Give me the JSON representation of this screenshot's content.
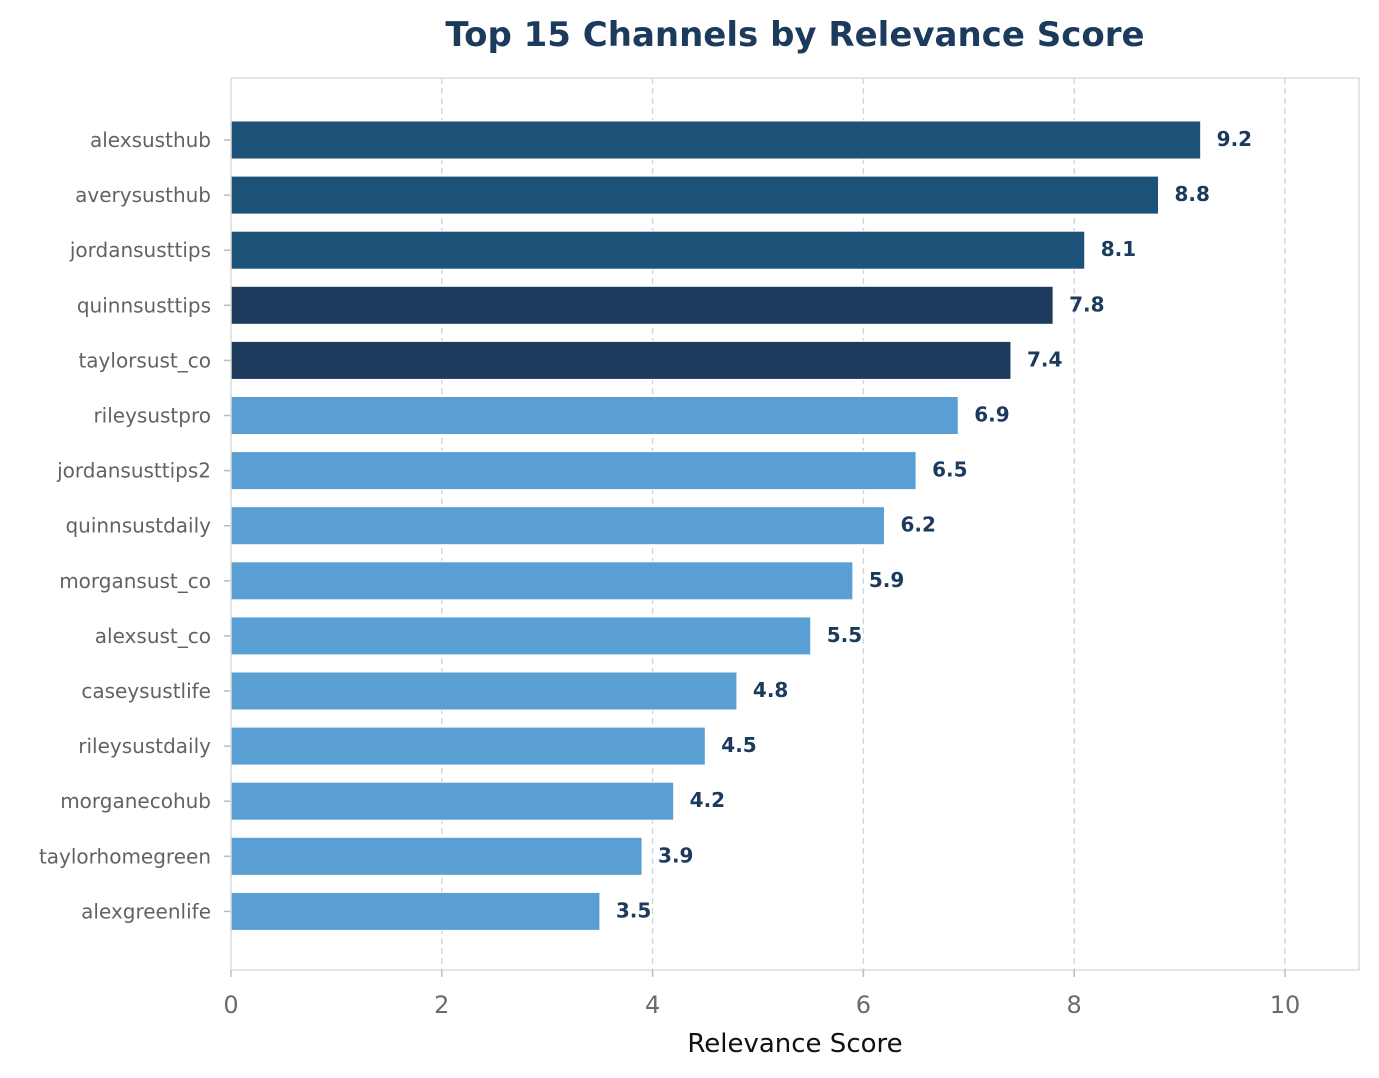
{
  "chart_data": {
    "type": "bar",
    "orientation": "horizontal",
    "title": "Top 15 Channels by Relevance Score",
    "xlabel": "Relevance Score",
    "ylabel": "",
    "xlim": [
      0,
      10.7
    ],
    "xticks": [
      0,
      2,
      4,
      6,
      8,
      10
    ],
    "grid": "x-dashed",
    "categories": [
      "alexsusthub",
      "averysusthub",
      "jordansusttips",
      "quinnsusttips",
      "taylorsust_co",
      "rileysustpro",
      "jordansusttips2",
      "quinnsustdaily",
      "morgansust_co",
      "alexsust_co",
      "caseysustlife",
      "rileysustdaily",
      "morganecohub",
      "taylorhomegreen",
      "alexgreenlife"
    ],
    "values": [
      9.2,
      8.8,
      8.1,
      7.8,
      7.4,
      6.9,
      6.5,
      6.2,
      5.9,
      5.5,
      4.8,
      4.5,
      4.2,
      3.9,
      3.5
    ],
    "value_labels": [
      "9.2",
      "8.8",
      "8.1",
      "7.8",
      "7.4",
      "6.9",
      "6.5",
      "6.2",
      "5.9",
      "5.5",
      "4.8",
      "4.5",
      "4.2",
      "3.9",
      "3.5"
    ],
    "colors": [
      "#1c5178",
      "#1c5178",
      "#1c5178",
      "#1b3a5c",
      "#1b3a5c",
      "#5a9fd4",
      "#5a9fd4",
      "#5a9fd4",
      "#5a9fd4",
      "#5a9fd4",
      "#5a9fd4",
      "#5a9fd4",
      "#5a9fd4",
      "#5a9fd4",
      "#5a9fd4"
    ]
  }
}
